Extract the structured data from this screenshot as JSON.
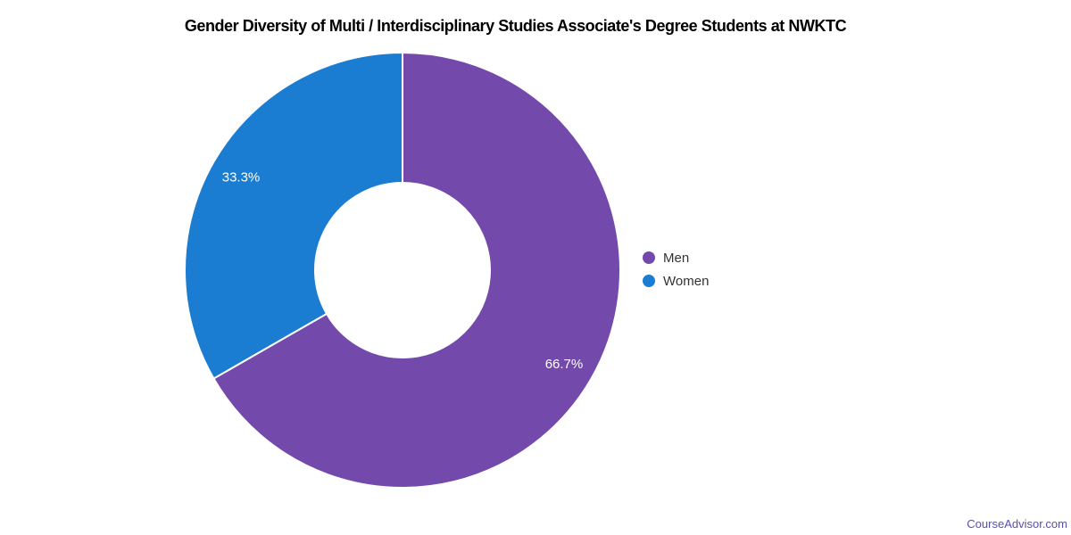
{
  "page": {
    "background": "#ffffff"
  },
  "chart_data": {
    "type": "pie",
    "title": "Gender Diversity of Multi / Interdisciplinary Studies Associate's Degree Students at NWKTC",
    "labels": [
      "Men",
      "Women"
    ],
    "values": [
      66.7,
      33.3
    ],
    "value_labels": [
      "66.7%",
      "33.3%"
    ],
    "colors": [
      "#7349ac",
      "#1b7dd2"
    ],
    "hole_ratio": 0.4,
    "start_angle_from_top_deg": 0,
    "direction": "clockwise",
    "slice_label_color": "#ffffff",
    "slice_separator_color": "#ffffff",
    "legend_position": "right"
  },
  "watermark": {
    "text": "CourseAdvisor.com",
    "color": "#584fb0"
  }
}
